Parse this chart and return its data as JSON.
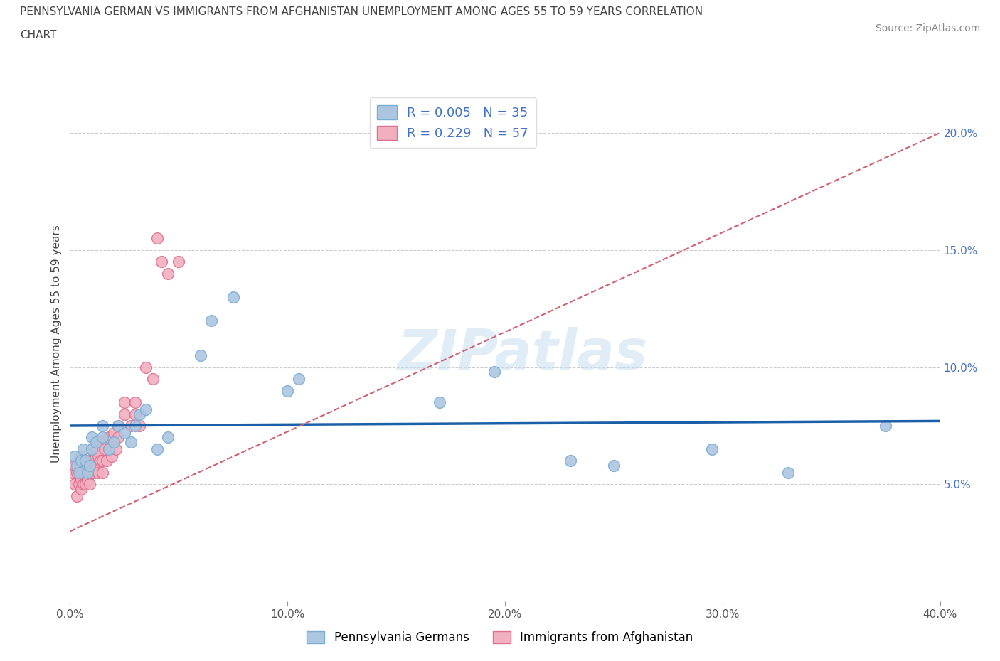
{
  "title_line1": "PENNSYLVANIA GERMAN VS IMMIGRANTS FROM AFGHANISTAN UNEMPLOYMENT AMONG AGES 55 TO 59 YEARS CORRELATION",
  "title_line2": "CHART",
  "source": "Source: ZipAtlas.com",
  "ylabel": "Unemployment Among Ages 55 to 59 years",
  "xlim": [
    0,
    0.4
  ],
  "ylim": [
    0,
    0.22
  ],
  "xticks": [
    0.0,
    0.1,
    0.2,
    0.3,
    0.4
  ],
  "yticks_right": [
    0.05,
    0.1,
    0.15,
    0.2
  ],
  "blue_color": "#adc6e0",
  "pink_color": "#f2afc0",
  "blue_edge": "#7aadd4",
  "pink_edge": "#e07090",
  "trend_blue_color": "#1a5fa8",
  "trend_pink_color": "#d06070",
  "legend_R1": "R = 0.005",
  "legend_N1": "N = 35",
  "legend_R2": "R = 0.229",
  "legend_N2": "N = 57",
  "watermark": "ZIPatlas",
  "blue_scatter_x": [
    0.002,
    0.003,
    0.004,
    0.005,
    0.006,
    0.007,
    0.008,
    0.009,
    0.01,
    0.01,
    0.012,
    0.015,
    0.015,
    0.018,
    0.02,
    0.022,
    0.025,
    0.028,
    0.03,
    0.032,
    0.035,
    0.04,
    0.045,
    0.06,
    0.065,
    0.075,
    0.1,
    0.105,
    0.17,
    0.195,
    0.23,
    0.25,
    0.295,
    0.33,
    0.375
  ],
  "blue_scatter_y": [
    0.062,
    0.058,
    0.055,
    0.06,
    0.065,
    0.06,
    0.055,
    0.058,
    0.065,
    0.07,
    0.068,
    0.07,
    0.075,
    0.065,
    0.068,
    0.075,
    0.072,
    0.068,
    0.075,
    0.08,
    0.082,
    0.065,
    0.07,
    0.105,
    0.12,
    0.13,
    0.09,
    0.095,
    0.085,
    0.098,
    0.06,
    0.058,
    0.065,
    0.055,
    0.075
  ],
  "pink_scatter_x": [
    0.001,
    0.002,
    0.002,
    0.003,
    0.003,
    0.004,
    0.004,
    0.005,
    0.005,
    0.005,
    0.005,
    0.006,
    0.006,
    0.006,
    0.007,
    0.007,
    0.007,
    0.008,
    0.008,
    0.009,
    0.009,
    0.01,
    0.01,
    0.01,
    0.011,
    0.011,
    0.012,
    0.012,
    0.013,
    0.013,
    0.014,
    0.014,
    0.015,
    0.015,
    0.015,
    0.016,
    0.017,
    0.018,
    0.018,
    0.019,
    0.02,
    0.02,
    0.021,
    0.022,
    0.022,
    0.025,
    0.025,
    0.028,
    0.03,
    0.03,
    0.032,
    0.035,
    0.038,
    0.04,
    0.042,
    0.045,
    0.05
  ],
  "pink_scatter_y": [
    0.055,
    0.05,
    0.058,
    0.045,
    0.055,
    0.05,
    0.06,
    0.048,
    0.052,
    0.058,
    0.062,
    0.05,
    0.055,
    0.06,
    0.05,
    0.055,
    0.06,
    0.052,
    0.058,
    0.05,
    0.06,
    0.055,
    0.06,
    0.065,
    0.055,
    0.06,
    0.058,
    0.065,
    0.055,
    0.062,
    0.06,
    0.068,
    0.055,
    0.06,
    0.068,
    0.065,
    0.06,
    0.065,
    0.07,
    0.062,
    0.068,
    0.072,
    0.065,
    0.07,
    0.075,
    0.08,
    0.085,
    0.075,
    0.08,
    0.085,
    0.075,
    0.1,
    0.095,
    0.155,
    0.145,
    0.14,
    0.145
  ],
  "blue_trend_x0": 0.0,
  "blue_trend_x1": 0.4,
  "blue_trend_y0": 0.075,
  "blue_trend_y1": 0.077,
  "pink_trend_x0": 0.0,
  "pink_trend_x1": 0.4,
  "pink_trend_y0": 0.03,
  "pink_trend_y1": 0.2
}
